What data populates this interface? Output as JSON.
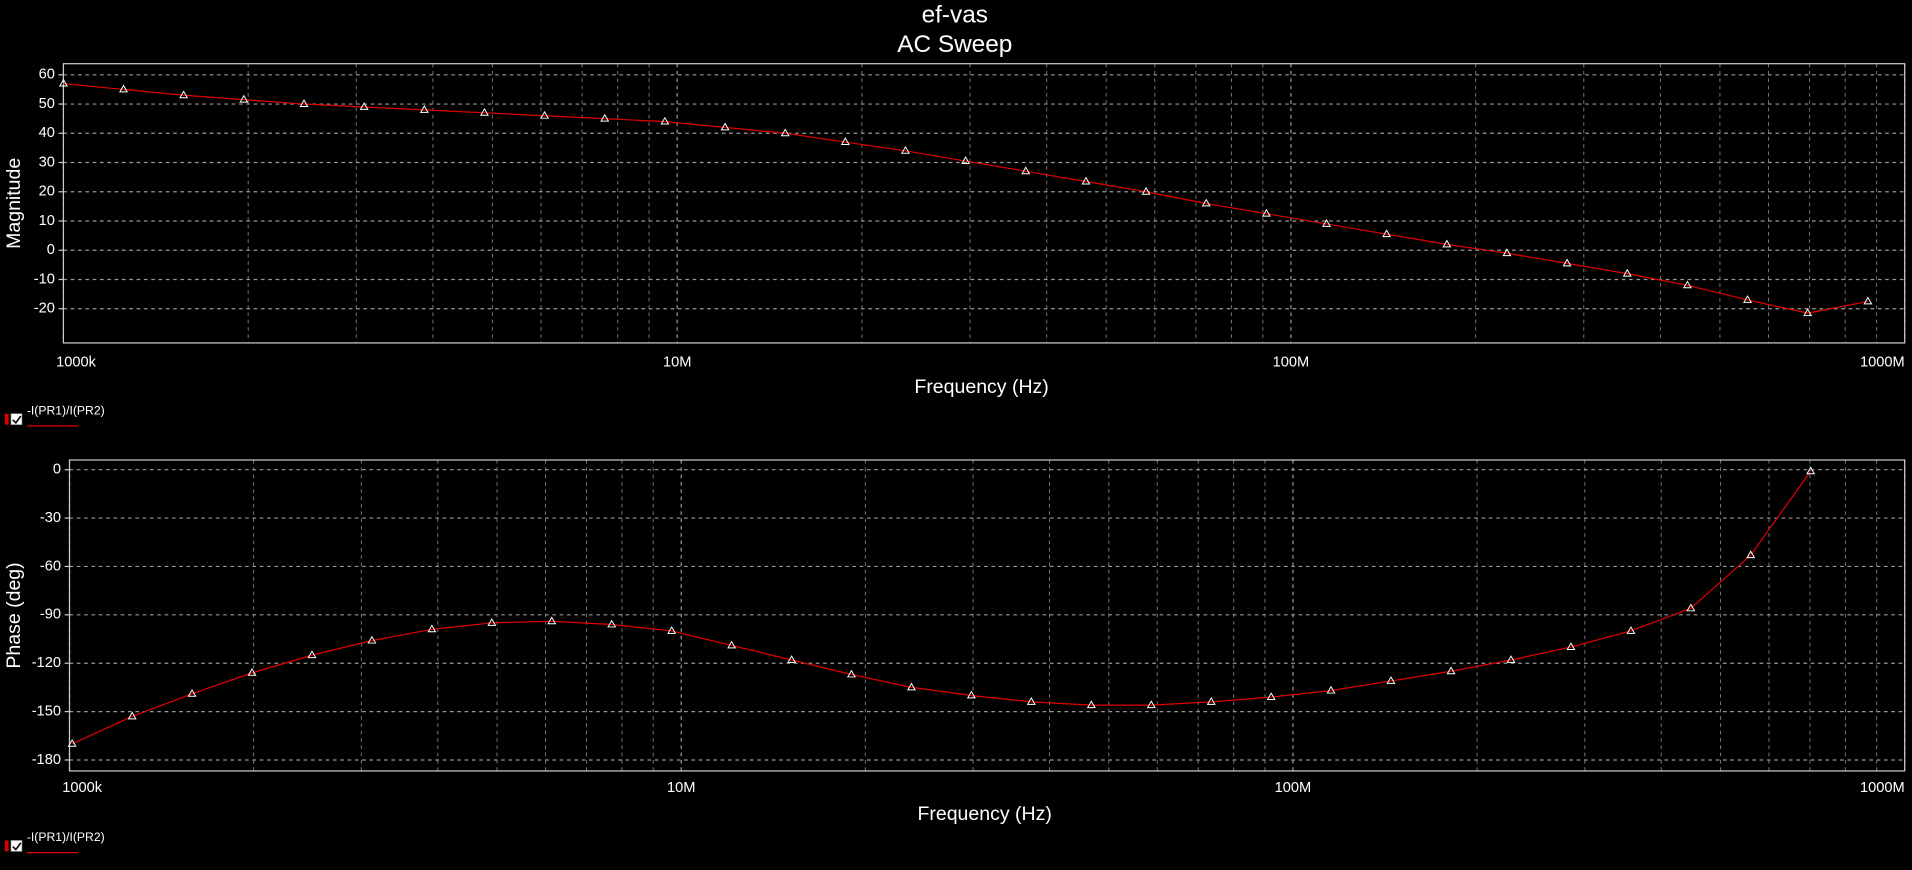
{
  "chart_data": [
    {
      "type": "line",
      "title": "ef-vas",
      "subtitle": "AC Sweep",
      "xlabel": "Frequency (Hz)",
      "ylabel": "Magnitude",
      "xscale": "log",
      "grid": true,
      "xlim": [
        1000000,
        1000000000
      ],
      "xticks": [
        {
          "value": 1000000,
          "label": "1000k"
        },
        {
          "value": 10000000,
          "label": "10M"
        },
        {
          "value": 100000000,
          "label": "100M"
        },
        {
          "value": 1000000000,
          "label": "1000M"
        }
      ],
      "xminorticks": [
        2000000,
        3000000,
        4000000,
        5000000,
        6000000,
        7000000,
        8000000,
        9000000,
        20000000,
        30000000,
        40000000,
        50000000,
        60000000,
        70000000,
        80000000,
        90000000,
        200000000,
        300000000,
        400000000,
        500000000,
        600000000,
        700000000,
        800000000,
        900000000
      ],
      "ylim": [
        -31.7,
        63.8
      ],
      "yticks": [
        60,
        50,
        40,
        30,
        20,
        10,
        0,
        -10,
        -20
      ],
      "x": [
        1000000,
        1253000,
        1570000,
        1968000,
        2466000,
        3090000,
        3873000,
        4853000,
        6081000,
        7621000,
        9550000,
        11970000,
        15000000,
        18790000,
        23550000,
        29510000,
        36980000,
        46350000,
        58080000,
        72780000,
        91200000,
        114300000,
        143200000,
        179500000,
        224900000,
        281800000,
        353200000,
        442600000,
        554600000,
        695000000,
        871000000
      ],
      "series": [
        {
          "name": "-I(PR1)/I(PR2)",
          "color": "#e00000",
          "values": [
            57,
            55,
            53,
            51.5,
            50,
            49,
            48,
            47,
            46,
            45,
            44,
            42,
            40,
            37,
            34,
            30.5,
            27,
            23.5,
            20,
            16,
            12.5,
            9,
            5.5,
            2,
            -1,
            -4.5,
            -8,
            -12,
            -17,
            -21.5,
            -17.5
          ]
        }
      ]
    },
    {
      "type": "line",
      "xlabel": "Frequency (Hz)",
      "ylabel": "Phase (deg)",
      "xscale": "log",
      "grid": true,
      "xlim": [
        1000000,
        1000000000
      ],
      "xticks": [
        {
          "value": 1000000,
          "label": "1000k"
        },
        {
          "value": 10000000,
          "label": "10M"
        },
        {
          "value": 100000000,
          "label": "100M"
        },
        {
          "value": 1000000000,
          "label": "1000M"
        }
      ],
      "xminorticks": [
        2000000,
        3000000,
        4000000,
        5000000,
        6000000,
        7000000,
        8000000,
        9000000,
        20000000,
        30000000,
        40000000,
        50000000,
        60000000,
        70000000,
        80000000,
        90000000,
        200000000,
        300000000,
        400000000,
        500000000,
        600000000,
        700000000,
        800000000,
        900000000
      ],
      "ylim": [
        -186.8,
        6
      ],
      "yticks": [
        0,
        -30,
        -60,
        -90,
        -120,
        -150,
        -180
      ],
      "x": [
        1010000,
        1266000,
        1586000,
        1988000,
        2491000,
        3121000,
        3912000,
        4902000,
        6142000,
        7698000,
        9646000,
        12090000,
        15150000,
        18980000,
        23790000,
        29810000,
        37350000,
        46820000,
        58670000,
        73520000,
        92120000,
        115400000,
        144600000,
        181300000,
        227200000,
        284700000,
        356800000,
        447100000,
        560200000,
        702000000
      ],
      "series": [
        {
          "name": "-I(PR1)/I(PR2)",
          "color": "#e00000",
          "values": [
            -170,
            -153,
            -139,
            -126,
            -115,
            -106,
            -99,
            -95,
            -94,
            -96,
            -100,
            -109,
            -118,
            -127,
            -135,
            -140,
            -144,
            -146,
            -146,
            -144,
            -141,
            -137,
            -131,
            -125,
            -118,
            -110,
            -100,
            -86,
            -53,
            -1
          ]
        }
      ]
    }
  ]
}
